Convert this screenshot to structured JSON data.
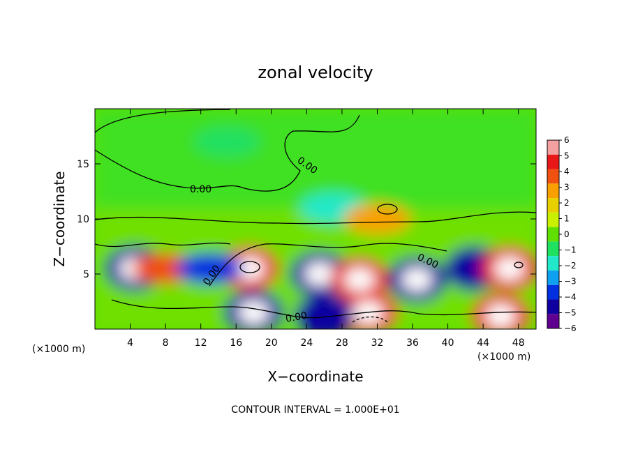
{
  "chart_data": {
    "type": "heatmap",
    "title": "zonal velocity",
    "xlabel": "X−coordinate",
    "ylabel": "Z−coordinate",
    "x_unit": "(×1000 m)",
    "z_unit": "(×1000 m)",
    "xlim": [
      0,
      50
    ],
    "ylim": [
      0,
      20
    ],
    "xticks": [
      "4",
      "8",
      "12",
      "16",
      "20",
      "24",
      "28",
      "32",
      "36",
      "40",
      "44",
      "48"
    ],
    "yticks": [
      "5",
      "10",
      "15"
    ],
    "contour_label": "0.00",
    "contour_interval_text": "CONTOUR INTERVAL = 1.000E+01",
    "colorbar": {
      "min": -6,
      "max": 6,
      "ticks": [
        "6",
        "5",
        "4",
        "3",
        "2",
        "1",
        "0",
        "−1",
        "−2",
        "−3",
        "−4",
        "−5",
        "−6"
      ],
      "colors": [
        "#f4a0a0",
        "#e81818",
        "#f05010",
        "#f8a000",
        "#e8d000",
        "#c8f000",
        "#60e000",
        "#20e060",
        "#20e8c8",
        "#10a0f0",
        "#0030e0",
        "#1000a0",
        "#600090"
      ]
    },
    "field_features": [
      {
        "x": 4.5,
        "z": 5.5,
        "value": -6
      },
      {
        "x": 17.5,
        "z": 5.5,
        "value": 6
      },
      {
        "x": 8,
        "z": 5.5,
        "value": 4
      },
      {
        "x": 13,
        "z": 5.5,
        "value": -4
      },
      {
        "x": 25.5,
        "z": 5,
        "value": -6
      },
      {
        "x": 30,
        "z": 4.5,
        "value": 6
      },
      {
        "x": 36.5,
        "z": 4.5,
        "value": -6
      },
      {
        "x": 43,
        "z": 5.5,
        "value": -5
      },
      {
        "x": 47,
        "z": 5.5,
        "value": 6
      },
      {
        "x": 18,
        "z": 1.5,
        "value": -6
      },
      {
        "x": 31,
        "z": 1.5,
        "value": 6
      },
      {
        "x": 46,
        "z": 1.2,
        "value": 6
      },
      {
        "x": 26,
        "z": 1.2,
        "value": -5
      },
      {
        "x": 27,
        "z": 11,
        "value": -2
      },
      {
        "x": 32,
        "z": 10,
        "value": 3
      },
      {
        "x": 15,
        "z": 17,
        "value": -1
      }
    ]
  }
}
